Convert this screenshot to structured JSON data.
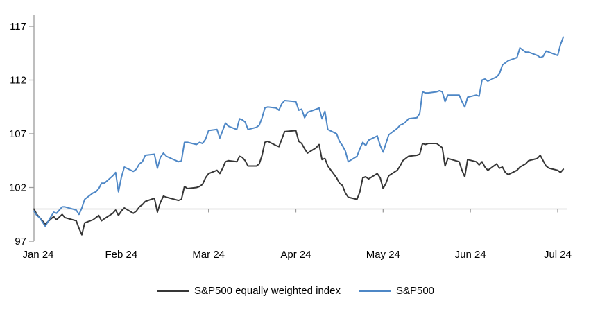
{
  "axis": {
    "color": "#9c9c9c",
    "text_color": "#000000"
  },
  "chart_data": {
    "type": "line",
    "title": "",
    "grid": "none",
    "legend_position": "bottom-center",
    "ylim": [
      97,
      118
    ],
    "yticks": [
      97,
      102,
      107,
      112,
      117
    ],
    "baseline_value": 100,
    "x_ticks": [
      {
        "label": "Jan 24",
        "month": 1
      },
      {
        "label": "Feb 24",
        "month": 2
      },
      {
        "label": "Mar 24",
        "month": 3
      },
      {
        "label": "Apr 24",
        "month": 4
      },
      {
        "label": "May 24",
        "month": 5
      },
      {
        "label": "Jun 24",
        "month": 6
      },
      {
        "label": "Jul 24",
        "month": 7
      }
    ],
    "dates": [
      "1-1",
      "1-2",
      "1-3",
      "1-5",
      "1-8",
      "1-9",
      "1-11",
      "1-12",
      "1-16",
      "1-17",
      "1-18",
      "1-19",
      "1-22",
      "1-23",
      "1-24",
      "1-25",
      "1-26",
      "1-29",
      "1-30",
      "1-31",
      "2-1",
      "2-2",
      "2-5",
      "2-6",
      "2-7",
      "2-8",
      "2-9",
      "2-12",
      "2-13",
      "2-14",
      "2-15",
      "2-16",
      "2-20",
      "2-21",
      "2-22",
      "2-23",
      "2-26",
      "2-27",
      "2-28",
      "2-29",
      "3-1",
      "3-4",
      "3-5",
      "3-6",
      "3-7",
      "3-8",
      "3-11",
      "3-12",
      "3-13",
      "3-14",
      "3-15",
      "3-18",
      "3-19",
      "3-20",
      "3-21",
      "3-22",
      "3-25",
      "3-26",
      "3-27",
      "3-28",
      "4-1",
      "4-2",
      "4-3",
      "4-4",
      "4-5",
      "4-8",
      "4-9",
      "4-10",
      "4-11",
      "4-12",
      "4-15",
      "4-16",
      "4-17",
      "4-18",
      "4-19",
      "4-22",
      "4-23",
      "4-24",
      "4-25",
      "4-26",
      "4-29",
      "4-30",
      "5-1",
      "5-2",
      "5-3",
      "5-6",
      "5-7",
      "5-8",
      "5-9",
      "5-10",
      "5-13",
      "5-14",
      "5-15",
      "5-16",
      "5-17",
      "5-20",
      "5-21",
      "5-22",
      "5-23",
      "5-24",
      "5-28",
      "5-29",
      "5-30",
      "5-31",
      "6-3",
      "6-4",
      "6-5",
      "6-6",
      "6-7",
      "6-10",
      "6-11",
      "6-12",
      "6-13",
      "6-14",
      "6-17",
      "6-18",
      "6-20",
      "6-21",
      "6-24",
      "6-25",
      "6-26",
      "6-27",
      "6-28",
      "7-1",
      "7-2",
      "7-3"
    ],
    "series": [
      {
        "name": "S&P500 equally weighted index",
        "color": "#363636",
        "values": [
          100.0,
          99.5,
          99.2,
          98.6,
          99.3,
          99.0,
          99.5,
          99.2,
          98.9,
          98.2,
          97.6,
          98.7,
          99.0,
          99.2,
          99.4,
          98.9,
          99.1,
          99.6,
          99.9,
          99.4,
          99.8,
          100.1,
          99.6,
          99.8,
          100.2,
          100.4,
          100.7,
          101.0,
          99.7,
          100.6,
          101.2,
          101.1,
          100.8,
          100.9,
          102.1,
          101.9,
          102.0,
          102.1,
          102.3,
          102.9,
          103.3,
          103.6,
          103.3,
          103.8,
          104.4,
          104.5,
          104.4,
          104.9,
          104.8,
          104.5,
          104.0,
          104.0,
          104.2,
          105.0,
          106.2,
          106.3,
          105.9,
          105.8,
          106.5,
          107.2,
          107.3,
          106.3,
          106.1,
          105.6,
          105.2,
          105.7,
          106.0,
          104.6,
          104.7,
          104.0,
          102.9,
          102.4,
          102.2,
          101.5,
          101.1,
          100.9,
          101.6,
          102.9,
          103.0,
          102.8,
          103.3,
          102.9,
          101.9,
          102.4,
          103.1,
          103.6,
          104.0,
          104.5,
          104.7,
          104.9,
          105.0,
          105.1,
          106.1,
          106.0,
          106.1,
          106.1,
          105.9,
          105.7,
          104.0,
          104.7,
          104.4,
          103.6,
          103.0,
          104.6,
          104.4,
          104.1,
          104.4,
          103.9,
          103.6,
          104.2,
          103.8,
          103.9,
          103.4,
          103.2,
          103.6,
          103.9,
          104.2,
          104.5,
          104.7,
          105.0,
          104.5,
          104.0,
          103.8,
          103.6,
          103.4,
          103.7
        ]
      },
      {
        "name": "S&P500",
        "color": "#4e87c6",
        "values": [
          99.8,
          99.4,
          99.2,
          98.4,
          99.7,
          99.6,
          100.2,
          100.2,
          99.9,
          99.5,
          100.1,
          100.9,
          101.5,
          101.6,
          101.9,
          102.4,
          102.4,
          103.1,
          103.4,
          101.6,
          102.9,
          103.9,
          103.5,
          103.7,
          104.2,
          104.4,
          105.0,
          105.1,
          103.8,
          104.8,
          105.2,
          104.9,
          104.4,
          104.5,
          106.2,
          106.2,
          106.0,
          106.2,
          106.1,
          106.5,
          107.3,
          107.4,
          106.6,
          107.3,
          108.0,
          107.7,
          107.4,
          108.4,
          108.3,
          108.1,
          107.4,
          107.6,
          107.8,
          108.5,
          109.4,
          109.5,
          109.4,
          109.2,
          109.8,
          110.1,
          110.0,
          109.2,
          109.3,
          108.5,
          109.0,
          109.3,
          109.4,
          108.4,
          109.1,
          107.4,
          107.0,
          106.3,
          105.9,
          105.4,
          104.4,
          104.9,
          105.6,
          106.2,
          105.9,
          106.4,
          106.8,
          105.9,
          105.3,
          106.1,
          106.9,
          107.5,
          107.8,
          107.9,
          108.1,
          108.4,
          108.5,
          108.9,
          110.9,
          110.8,
          110.8,
          110.9,
          111.0,
          110.9,
          110.0,
          110.6,
          110.6,
          110.0,
          109.5,
          110.4,
          110.6,
          110.5,
          112.0,
          112.1,
          111.9,
          112.3,
          112.6,
          113.4,
          113.6,
          113.8,
          114.1,
          115.0,
          114.6,
          114.6,
          114.3,
          114.1,
          114.2,
          114.7,
          114.6,
          114.3,
          115.3,
          116.0
        ]
      }
    ]
  }
}
